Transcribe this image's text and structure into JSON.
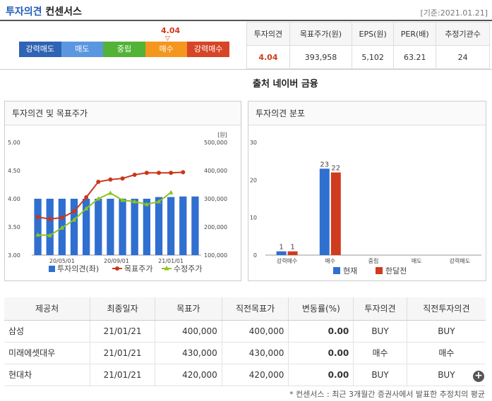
{
  "header": {
    "title_part1": "투자의견",
    "title_part2": "컨센서스",
    "date": "[기준:2021.01.21]"
  },
  "scale": {
    "marker_value": "4.04",
    "marker_arrow": "▽",
    "labels": [
      "강력매도",
      "매도",
      "중립",
      "매수",
      "강력매수"
    ],
    "colors": [
      "#2f63b4",
      "#5b97e0",
      "#52b336",
      "#f5961e",
      "#d64526"
    ]
  },
  "summary": {
    "headers": [
      "투자의견",
      "목표주가(원)",
      "EPS(원)",
      "PER(배)",
      "추정기관수"
    ],
    "values": [
      "4.04",
      "393,958",
      "5,102",
      "63.21",
      "24"
    ]
  },
  "source": "출처 네이버 금융",
  "chart_data": [
    {
      "type": "bar+line",
      "title": "투자의견 및 목표주가",
      "x_ticks": [
        "20/05/01",
        "20/09/01",
        "21/01/01"
      ],
      "y_left": {
        "ticks": [
          "5.00",
          "4.50",
          "4.00",
          "3.50",
          "3.00"
        ],
        "range": [
          3.0,
          5.0
        ]
      },
      "y_right": {
        "unit": "[원]",
        "ticks": [
          "500,000",
          "400,000",
          "300,000",
          "200,000",
          "100,000"
        ],
        "range": [
          100000,
          500000
        ]
      },
      "series": [
        {
          "name": "투자의견(좌)",
          "kind": "bar",
          "color": "#2f6fd0",
          "values": [
            4.0,
            4.0,
            4.0,
            4.0,
            4.0,
            4.0,
            4.0,
            4.0,
            4.0,
            4.0,
            4.03,
            4.03,
            4.04,
            4.04
          ]
        },
        {
          "name": "목표주가",
          "kind": "line",
          "color": "#c8381b",
          "values": [
            235000,
            228000,
            233000,
            255000,
            305000,
            360000,
            368000,
            372000,
            385000,
            392000,
            392000,
            392000,
            394000
          ]
        },
        {
          "name": "수정주가",
          "kind": "line",
          "color": "#8bc41f",
          "values": [
            172000,
            170000,
            197000,
            225000,
            265000,
            300000,
            320000,
            295000,
            290000,
            280000,
            290000,
            322000
          ]
        }
      ]
    },
    {
      "type": "bar",
      "title": "투자의견 분포",
      "categories": [
        "강력매수",
        "매수",
        "중립",
        "매도",
        "강력매도"
      ],
      "y_ticks": [
        "30",
        "20",
        "10",
        "0"
      ],
      "ylim": [
        0,
        30
      ],
      "series": [
        {
          "name": "현재",
          "color": "#2f6fd0",
          "values": [
            1,
            23,
            0,
            0,
            0
          ]
        },
        {
          "name": "한달전",
          "color": "#d03b1e",
          "values": [
            1,
            22,
            0,
            0,
            0
          ]
        }
      ]
    }
  ],
  "table": {
    "headers": [
      "제공처",
      "최종일자",
      "목표가",
      "직전목표가",
      "변동률(%)",
      "투자의견",
      "직전투자의견"
    ],
    "rows": [
      [
        "삼성",
        "21/01/21",
        "400,000",
        "400,000",
        "0.00",
        "BUY",
        "BUY"
      ],
      [
        "미래에셋대우",
        "21/01/21",
        "430,000",
        "430,000",
        "0.00",
        "매수",
        "매수"
      ],
      [
        "현대차",
        "21/01/21",
        "420,000",
        "420,000",
        "0.00",
        "BUY",
        "BUY"
      ]
    ]
  },
  "footnote": "* 컨센서스 : 최근 3개월간 증권사에서 발표한 추정치의 평균",
  "more_button": "+"
}
